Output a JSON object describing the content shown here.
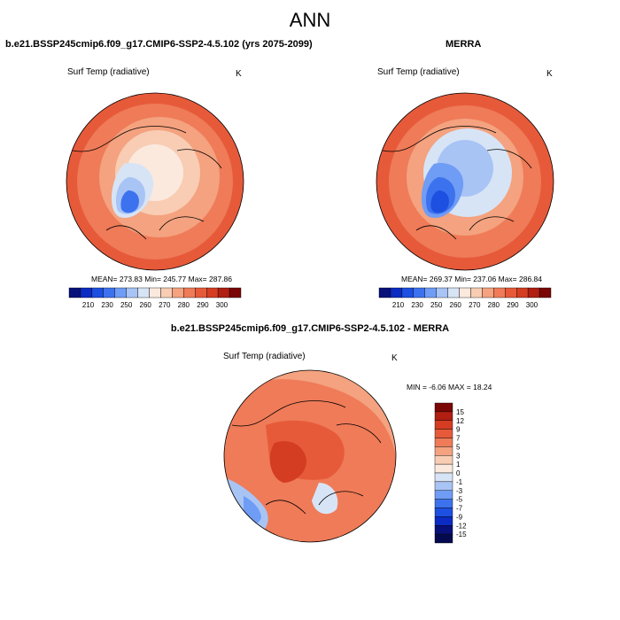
{
  "page": {
    "title": "ANN"
  },
  "panels": [
    {
      "id": "model",
      "title": "b.e21.BSSP245cmip6.f09_g17.CMIP6-SSP2-4.5.102 (yrs 2075-2099)",
      "variable": "Surf Temp (radiative)",
      "units": "K",
      "stats": {
        "text": "MEAN= 273.83  Min= 245.77  Max= 287.86",
        "mean": 273.83,
        "min": 245.77,
        "max": 287.86
      },
      "colorbar_labels": [
        "210",
        "230",
        "250",
        "260",
        "270",
        "280",
        "290",
        "300"
      ]
    },
    {
      "id": "obs",
      "title": "MERRA",
      "variable": "Surf Temp (radiative)",
      "units": "K",
      "stats": {
        "text": "MEAN= 269.37  Min= 237.06  Max= 286.84",
        "mean": 269.37,
        "min": 237.06,
        "max": 286.84
      },
      "colorbar_labels": [
        "210",
        "230",
        "250",
        "260",
        "270",
        "280",
        "290",
        "300"
      ]
    },
    {
      "id": "diff",
      "title": "b.e21.BSSP245cmip6.f09_g17.CMIP6-SSP2-4.5.102 - MERRA",
      "variable": "Surf Temp (radiative)",
      "units": "K",
      "stats": {
        "text": "MIN =  -6.06 MAX =  18.24",
        "min": -6.06,
        "max": 18.24
      },
      "colorbar_labels": [
        "15",
        "12",
        "9",
        "7",
        "5",
        "3",
        "1",
        "0",
        "-1",
        "-3",
        "-5",
        "-7",
        "-9",
        "-12",
        "-15"
      ]
    }
  ],
  "colors": {
    "abs_palette": [
      "#08107a",
      "#0b2bc2",
      "#1d4fe0",
      "#3d72ee",
      "#6f9cf5",
      "#a8c4f5",
      "#d7e4f6",
      "#fbe9de",
      "#f8cdb4",
      "#f4a27f",
      "#ef7b58",
      "#e65a3a",
      "#d43d22",
      "#b01f12",
      "#7a0606"
    ],
    "diff_palette": [
      "#7a0606",
      "#b01f12",
      "#d43d22",
      "#e65a3a",
      "#ef7b58",
      "#f4a27f",
      "#f8cdb4",
      "#fbe9de",
      "#d7e4f6",
      "#a8c4f5",
      "#6f9cf5",
      "#3d72ee",
      "#1d4fe0",
      "#0b2bc2",
      "#08107a",
      "#050a50"
    ]
  }
}
